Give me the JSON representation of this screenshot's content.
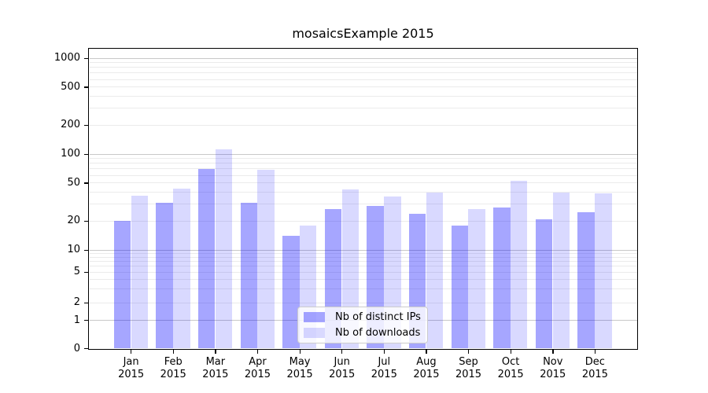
{
  "chart_data": {
    "type": "bar",
    "title": "mosaicsExample 2015",
    "categories": [
      "Jan 2015",
      "Feb 2015",
      "Mar 2015",
      "Apr 2015",
      "May 2015",
      "Jun 2015",
      "Jul 2015",
      "Aug 2015",
      "Sep 2015",
      "Oct 2015",
      "Nov 2015",
      "Dec 2015"
    ],
    "series": [
      {
        "name": "Nb of distinct IPs",
        "color": "rgba(0,0,255,0.35)",
        "values": [
          20,
          31,
          70,
          31,
          14,
          27,
          29,
          24,
          18,
          28,
          21,
          25
        ]
      },
      {
        "name": "Nb of downloads",
        "color": "rgba(0,0,255,0.15)",
        "values": [
          37,
          44,
          112,
          68,
          18,
          43,
          36,
          40,
          27,
          53,
          40,
          39
        ]
      }
    ],
    "xlabel": "",
    "ylabel": "",
    "yscale": "symlog",
    "yticks": [
      1000,
      500,
      200,
      100,
      50,
      20,
      10,
      5,
      2,
      1,
      0
    ],
    "ylim": [
      0,
      1000
    ],
    "grid": true,
    "legend_position": "inside-bottom-center"
  },
  "colors": {
    "background": "#ffffff",
    "axis": "#000000",
    "grid_minor": "#ebebeb",
    "grid_major": "#c8c8c8",
    "text": "#000000"
  }
}
